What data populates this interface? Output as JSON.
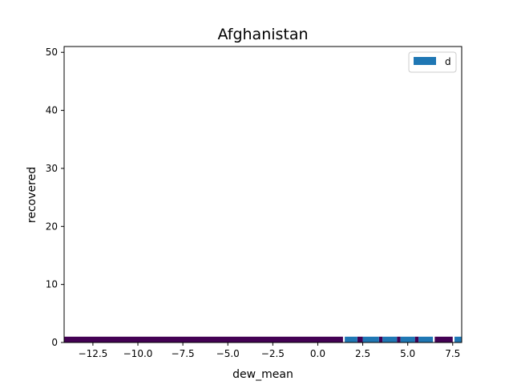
{
  "chart_data": {
    "type": "bar",
    "title": "Afghanistan",
    "xlabel": "dew_mean",
    "ylabel": "recovered",
    "xlim": [
      -14.1,
      8.0
    ],
    "ylim": [
      0,
      51
    ],
    "xticks": [
      -12.5,
      -10.0,
      -7.5,
      -5.0,
      -2.5,
      0.0,
      2.5,
      5.0,
      7.5
    ],
    "xtick_labels": [
      "−12.5",
      "−10.0",
      "−7.5",
      "−5.0",
      "−2.5",
      "0.0",
      "2.5",
      "5.0",
      "7.5"
    ],
    "yticks": [
      0,
      10,
      20,
      30,
      40,
      50
    ],
    "ytick_labels": [
      "0",
      "10",
      "20",
      "30",
      "40",
      "50"
    ],
    "legend": {
      "position": "top-right",
      "entries": [
        {
          "label": "d",
          "color": "#1f77b4"
        }
      ]
    },
    "grid": false,
    "series": [
      {
        "name": "d",
        "color": "#1f77b4",
        "bars": [
          {
            "x0": 1.5,
            "x1": 2.2,
            "value": 1
          },
          {
            "x0": 2.5,
            "x1": 3.4,
            "value": 1
          },
          {
            "x0": 3.6,
            "x1": 4.4,
            "value": 1
          },
          {
            "x0": 4.6,
            "x1": 5.4,
            "value": 1
          },
          {
            "x0": 5.6,
            "x1": 6.4,
            "value": 1
          },
          {
            "x0": 7.6,
            "x1": 8.0,
            "value": 1
          }
        ]
      }
    ],
    "overlay": {
      "color": "#440154",
      "segments": [
        {
          "x0": -14.1,
          "x1": 1.4,
          "value": 1
        },
        {
          "x0": 2.2,
          "x1": 2.5,
          "value": 1
        },
        {
          "x0": 3.4,
          "x1": 3.6,
          "value": 1
        },
        {
          "x0": 4.4,
          "x1": 4.6,
          "value": 1
        },
        {
          "x0": 5.4,
          "x1": 5.6,
          "value": 1
        },
        {
          "x0": 6.5,
          "x1": 7.5,
          "value": 1
        }
      ]
    }
  }
}
